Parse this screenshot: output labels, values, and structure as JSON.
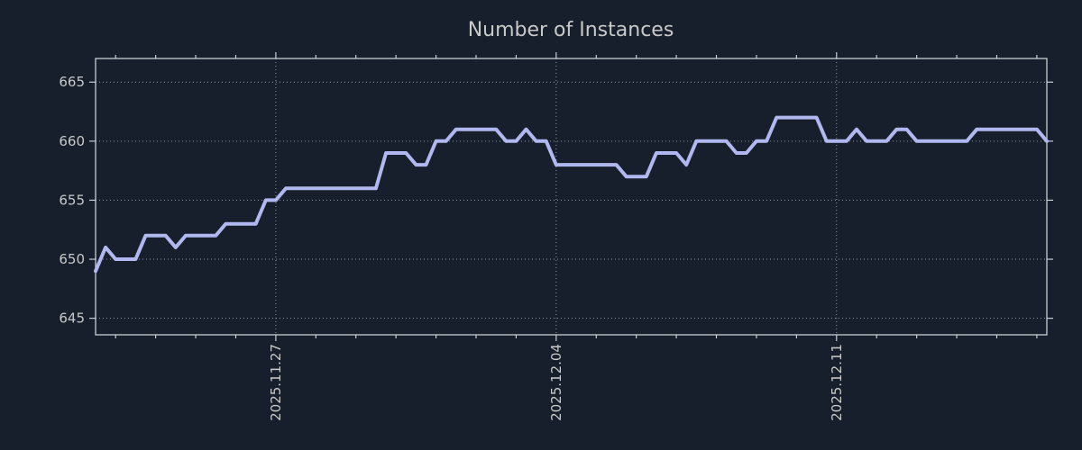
{
  "colors": {
    "background": "#161f2b",
    "line": "#b1b8ef",
    "grid": "#a9b0ba",
    "axis": "#c9cdd3",
    "text": "#c9c9c9"
  },
  "chart_data": {
    "type": "line",
    "title": "Number of Instances",
    "xlabel": "",
    "ylabel": "",
    "grid": true,
    "legend": false,
    "ylim": [
      643.6,
      667.0
    ],
    "y_ticks": [
      645,
      650,
      655,
      660,
      665
    ],
    "x_start": "2025-11-22T12:00",
    "x_step_hours": 6,
    "x_major_ticks": [
      {
        "label": "2025.11.27",
        "date": "2025-11-27T00:00"
      },
      {
        "label": "2025.12.04",
        "date": "2025-12-04T00:00"
      },
      {
        "label": "2025.12.11",
        "date": "2025-12-11T00:00"
      }
    ],
    "x_minor_tick_every_hours": 24,
    "values": [
      649,
      651,
      650,
      650,
      650,
      652,
      652,
      652,
      651,
      652,
      652,
      652,
      652,
      653,
      653,
      653,
      653,
      655,
      655,
      656,
      656,
      656,
      656,
      656,
      656,
      656,
      656,
      656,
      656,
      659,
      659,
      659,
      658,
      658,
      660,
      660,
      661,
      661,
      661,
      661,
      661,
      660,
      660,
      661,
      660,
      660,
      658,
      658,
      658,
      658,
      658,
      658,
      658,
      657,
      657,
      657,
      659,
      659,
      659,
      658,
      660,
      660,
      660,
      660,
      659,
      659,
      660,
      660,
      662,
      662,
      662,
      662,
      662,
      660,
      660,
      660,
      661,
      660,
      660,
      660,
      661,
      661,
      660,
      660,
      660,
      660,
      660,
      660,
      661,
      661,
      661,
      661,
      661,
      661,
      661,
      660
    ]
  }
}
